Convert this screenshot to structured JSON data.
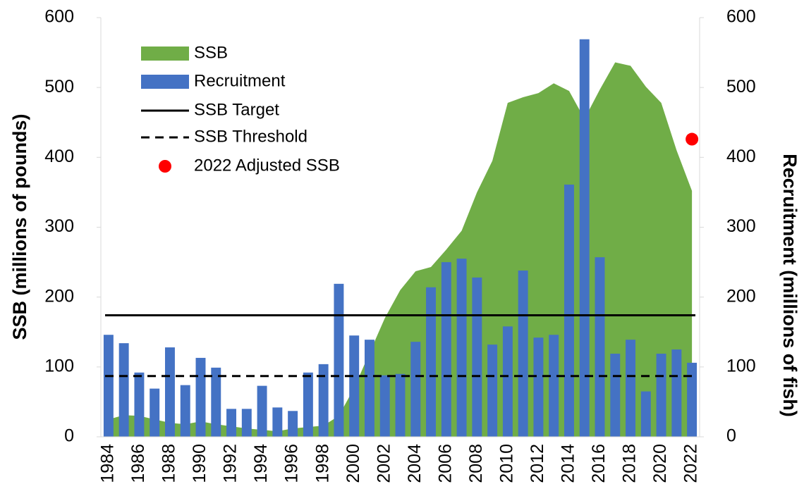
{
  "chart_data": {
    "type": "combo",
    "ylabel": "SSB (millions of pounds)",
    "y2label": "Recruitment (millions of fish)",
    "x": [
      1984,
      1985,
      1986,
      1987,
      1988,
      1989,
      1990,
      1991,
      1992,
      1993,
      1994,
      1995,
      1996,
      1997,
      1998,
      1999,
      2000,
      2001,
      2002,
      2003,
      2004,
      2005,
      2006,
      2007,
      2008,
      2009,
      2010,
      2011,
      2012,
      2013,
      2014,
      2015,
      2016,
      2017,
      2018,
      2019,
      2020,
      2021,
      2022
    ],
    "xlim": [
      1983.5,
      2022.5
    ],
    "xticks": [
      1984,
      1986,
      1988,
      1990,
      1992,
      1994,
      1996,
      1998,
      2000,
      2002,
      2004,
      2006,
      2008,
      2010,
      2012,
      2014,
      2016,
      2018,
      2020,
      2022
    ],
    "ylim": [
      0,
      600
    ],
    "yticks": [
      0,
      100,
      200,
      300,
      400,
      500,
      600
    ],
    "y2lim": [
      0,
      600
    ],
    "y2ticks": [
      0,
      100,
      200,
      300,
      400,
      500,
      600
    ],
    "legend": "upper left",
    "series": [
      {
        "name": "SSB",
        "type": "area",
        "color": "#70ad47",
        "values": [
          25,
          31,
          30,
          25,
          20,
          18,
          22,
          18,
          15,
          12,
          10,
          8,
          12,
          14,
          16,
          30,
          70,
          120,
          170,
          210,
          237,
          243,
          268,
          295,
          350,
          395,
          478,
          486,
          492,
          506,
          495,
          455,
          497,
          536,
          531,
          501,
          478,
          410,
          352
        ]
      },
      {
        "name": "Recruitment",
        "type": "bar",
        "axis": "y2",
        "color": "#4472c4",
        "values": [
          146,
          134,
          92,
          69,
          128,
          74,
          113,
          99,
          40,
          40,
          73,
          42,
          37,
          92,
          104,
          219,
          145,
          139,
          88,
          90,
          136,
          214,
          250,
          255,
          228,
          132,
          158,
          238,
          142,
          146,
          361,
          569,
          257,
          119,
          139,
          65,
          119,
          125,
          106
        ]
      },
      {
        "name": "SSB Target",
        "type": "hline",
        "color": "#000000",
        "dash": false,
        "value": 174
      },
      {
        "name": "SSB Threshold",
        "type": "hline",
        "color": "#000000",
        "dash": true,
        "value": 87
      },
      {
        "name": "2022 Adjusted SSB",
        "type": "point",
        "color": "#ff0000",
        "x": 2022,
        "value": 426
      }
    ]
  }
}
